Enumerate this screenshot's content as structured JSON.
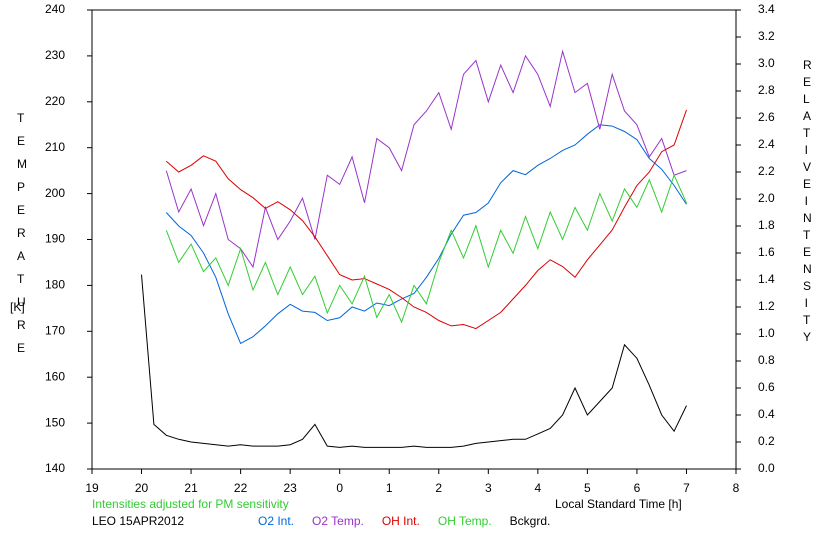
{
  "chart_data": {
    "type": "line",
    "ylabel": "TEMPERATURE",
    "yunit": "[K]",
    "y2label": "RELATIVE INTENSITY",
    "xlabel": "Local Standard Time [h]",
    "annotation": "Intensities adjusted for PM sensitivity",
    "station": "LEO 15APR2012",
    "legend": "bottom",
    "grid": false,
    "xlim": [
      19,
      32
    ],
    "xticks": [
      19,
      20,
      21,
      22,
      23,
      {
        "value": 24,
        "label": "0"
      },
      {
        "value": 25,
        "label": "1"
      },
      {
        "value": 26,
        "label": "2"
      },
      {
        "value": 27,
        "label": "3"
      },
      {
        "value": 28,
        "label": "4"
      },
      {
        "value": 29,
        "label": "5"
      },
      {
        "value": 30,
        "label": "6"
      },
      {
        "value": 31,
        "label": "7"
      },
      {
        "value": 32,
        "label": "8"
      }
    ],
    "ylim": [
      140,
      240
    ],
    "yticks": [
      140,
      150,
      160,
      170,
      180,
      190,
      200,
      210,
      220,
      230,
      240
    ],
    "y2lim": [
      0,
      3.4
    ],
    "y2ticks": [
      {
        "value": 0,
        "label": "0.0"
      },
      0.2,
      0.4,
      0.6,
      0.8,
      {
        "value": 1,
        "label": "1.0"
      },
      1.2,
      1.4,
      1.6,
      1.8,
      {
        "value": 2,
        "label": "2.0"
      },
      2.2,
      2.4,
      2.6,
      2.8,
      {
        "value": 3,
        "label": "3.0"
      },
      3.2,
      3.4
    ],
    "x": [
      20,
      20.25,
      20.5,
      20.75,
      21,
      21.25,
      21.5,
      21.75,
      22,
      22.25,
      22.5,
      22.75,
      23,
      23.25,
      23.5,
      23.75,
      24,
      24.25,
      24.5,
      24.75,
      25,
      25.25,
      25.5,
      25.75,
      26,
      26.25,
      26.5,
      26.75,
      27,
      27.25,
      27.5,
      27.75,
      28,
      28.25,
      28.5,
      28.75,
      29,
      29.25,
      29.5,
      29.75,
      30,
      30.25,
      30.5,
      30.75,
      31
    ],
    "series": [
      {
        "name": "O2 Int.",
        "color": "#0066dd",
        "axis": "y2",
        "values": [
          null,
          null,
          1.9,
          1.8,
          1.73,
          1.6,
          1.42,
          1.15,
          0.93,
          0.98,
          1.06,
          1.15,
          1.22,
          1.17,
          1.16,
          1.1,
          1.12,
          1.2,
          1.17,
          1.23,
          1.21,
          1.26,
          1.3,
          1.42,
          1.56,
          1.74,
          1.88,
          1.9,
          1.97,
          2.12,
          2.21,
          2.18,
          2.25,
          2.3,
          2.36,
          2.4,
          2.48,
          2.55,
          2.54,
          2.5,
          2.44,
          2.3,
          2.22,
          2.1,
          1.96
        ]
      },
      {
        "name": "O2 Temp.",
        "color": "#9933cc",
        "axis": "y",
        "values": [
          null,
          null,
          205,
          196,
          201,
          193,
          200,
          190,
          188,
          184,
          197,
          190,
          194,
          199,
          190,
          204,
          202,
          208,
          198,
          212,
          210,
          205,
          215,
          218,
          222,
          214,
          226,
          229,
          220,
          228,
          222,
          230,
          226,
          219,
          231,
          222,
          224,
          214,
          226,
          218,
          215,
          208,
          212,
          204,
          205
        ]
      },
      {
        "name": "OH Int.",
        "color": "#dd0000",
        "axis": "y2",
        "values": [
          null,
          null,
          2.28,
          2.2,
          2.25,
          2.32,
          2.28,
          2.15,
          2.07,
          2.01,
          1.93,
          1.98,
          1.92,
          1.84,
          1.72,
          1.58,
          1.44,
          1.4,
          1.41,
          1.37,
          1.33,
          1.27,
          1.2,
          1.16,
          1.1,
          1.06,
          1.07,
          1.04,
          1.1,
          1.16,
          1.26,
          1.36,
          1.47,
          1.55,
          1.5,
          1.42,
          1.55,
          1.66,
          1.77,
          1.94,
          2.1,
          2.2,
          2.35,
          2.4,
          2.66
        ]
      },
      {
        "name": "OH Temp.",
        "color": "#33cc33",
        "axis": "y",
        "values": [
          null,
          null,
          192,
          185,
          189,
          183,
          186,
          180,
          188,
          179,
          185,
          178,
          184,
          178,
          182,
          174,
          180,
          176,
          182,
          173,
          178,
          172,
          180,
          176,
          185,
          192,
          186,
          193,
          184,
          192,
          187,
          195,
          188,
          196,
          190,
          197,
          192,
          200,
          194,
          201,
          197,
          203,
          196,
          204,
          198
        ]
      },
      {
        "name": "Bckgrd.",
        "color": "#000000",
        "axis": "y2",
        "values": [
          1.44,
          0.33,
          0.25,
          0.22,
          0.2,
          0.19,
          0.18,
          0.17,
          0.18,
          0.17,
          0.17,
          0.17,
          0.18,
          0.22,
          0.33,
          0.17,
          0.16,
          0.17,
          0.16,
          0.16,
          0.16,
          0.16,
          0.17,
          0.16,
          0.16,
          0.16,
          0.17,
          0.19,
          0.2,
          0.21,
          0.22,
          0.22,
          0.26,
          0.3,
          0.4,
          0.6,
          0.4,
          0.5,
          0.6,
          0.92,
          0.82,
          0.62,
          0.4,
          0.28,
          0.47
        ]
      }
    ]
  }
}
